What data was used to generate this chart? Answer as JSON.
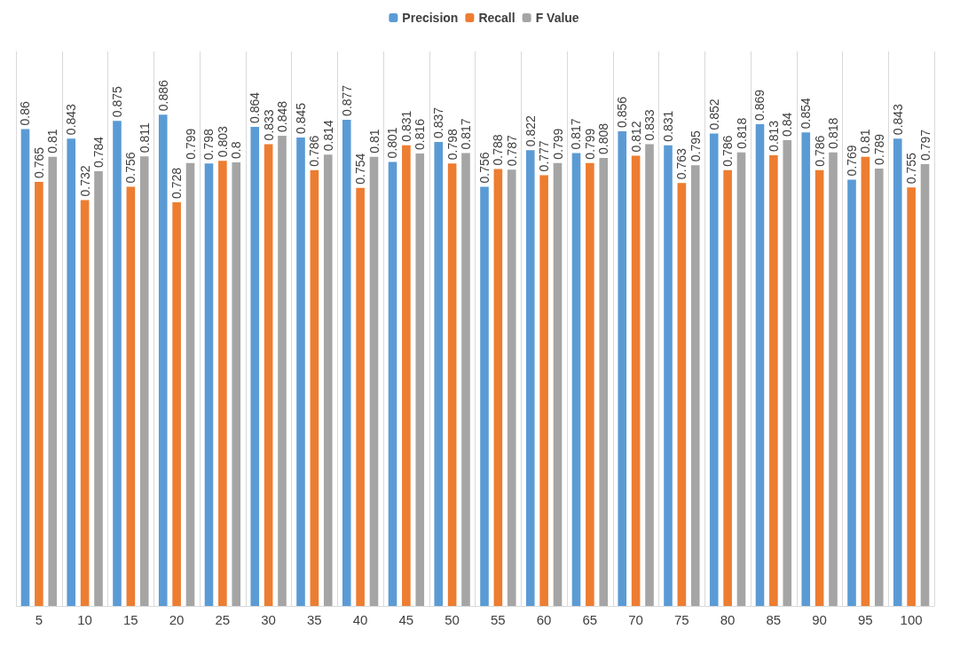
{
  "chart_data": {
    "type": "bar",
    "categories": [
      "5",
      "10",
      "15",
      "20",
      "25",
      "30",
      "35",
      "40",
      "45",
      "50",
      "55",
      "60",
      "65",
      "70",
      "75",
      "80",
      "85",
      "90",
      "95",
      "100"
    ],
    "series": [
      {
        "name": "Precision",
        "color": "#5b9bd5",
        "values": [
          0.86,
          0.843,
          0.875,
          0.886,
          0.798,
          0.864,
          0.845,
          0.877,
          0.801,
          0.837,
          0.756,
          0.822,
          0.817,
          0.856,
          0.831,
          0.852,
          0.869,
          0.854,
          0.769,
          0.843
        ]
      },
      {
        "name": "Recall",
        "color": "#ed7d31",
        "values": [
          0.765,
          0.732,
          0.756,
          0.728,
          0.803,
          0.833,
          0.786,
          0.754,
          0.831,
          0.798,
          0.788,
          0.777,
          0.799,
          0.812,
          0.763,
          0.786,
          0.813,
          0.786,
          0.81,
          0.755
        ]
      },
      {
        "name": "F Value",
        "color": "#a5a5a5",
        "values": [
          0.81,
          0.784,
          0.811,
          0.799,
          0.8,
          0.848,
          0.814,
          0.81,
          0.816,
          0.817,
          0.787,
          0.799,
          0.808,
          0.833,
          0.795,
          0.818,
          0.84,
          0.818,
          0.789,
          0.797
        ]
      }
    ],
    "data_labels": true,
    "grid": "x",
    "legend": "top"
  }
}
